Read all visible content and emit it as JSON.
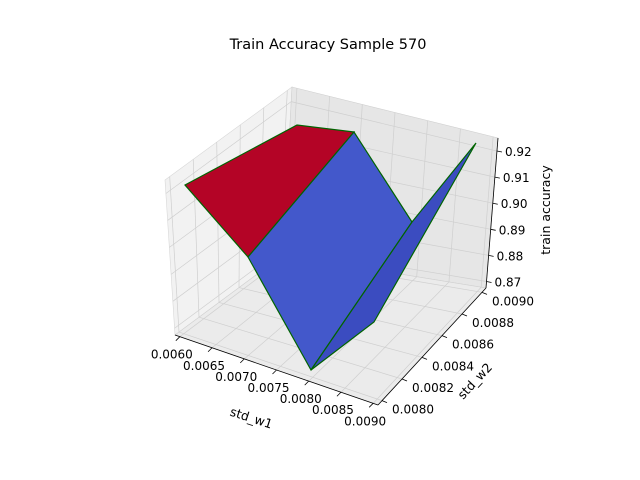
{
  "chart_data": {
    "type": "surface3d",
    "title": "Train Accuracy Sample 570",
    "xlabel": "std_w1",
    "ylabel": "std_w2",
    "zlabel": "train accuracy",
    "x": [
      0.006,
      0.009
    ],
    "y": [
      0.008,
      0.009
    ],
    "z": [
      [
        0.875,
        0.922
      ],
      [
        0.875,
        0.918
      ]
    ],
    "xlim": [
      0.006,
      0.009
    ],
    "ylim": [
      0.008,
      0.009
    ],
    "zlim": [
      0.8675,
      0.925
    ],
    "x_ticks": [
      "0.0060",
      "0.0065",
      "0.0070",
      "0.0075",
      "0.0080",
      "0.0085",
      "0.0090"
    ],
    "y_ticks": [
      "0.0080",
      "0.0082",
      "0.0084",
      "0.0086",
      "0.0088",
      "0.0090"
    ],
    "z_ticks": [
      "0.87",
      "0.88",
      "0.89",
      "0.90",
      "0.91",
      "0.92"
    ],
    "colors": {
      "surface_high": "#b40426",
      "surface_low": "#3b4cc0",
      "surface_mid": "#4358cb",
      "edge": "#006400",
      "pane": "#f2f2f2",
      "grid": "#cccccc"
    },
    "grid": true
  }
}
